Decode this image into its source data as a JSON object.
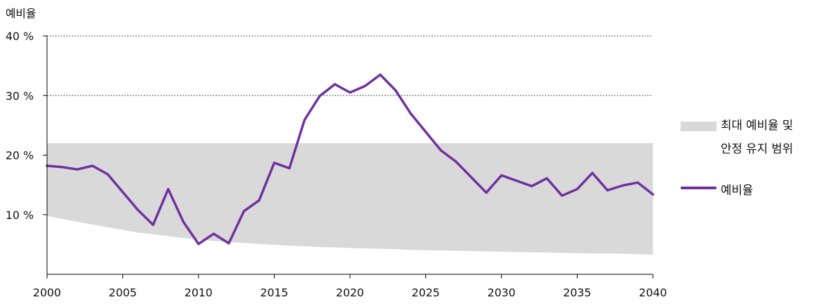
{
  "chart_data": {
    "type": "line",
    "title": "",
    "ylabel": "예비율",
    "xlabel": "",
    "xlim": [
      2000,
      2040
    ],
    "ylim": [
      0,
      40
    ],
    "x_ticks": [
      "2000",
      "2005",
      "2010",
      "2015",
      "2020",
      "2025",
      "2030",
      "2035",
      "2040"
    ],
    "y_ticks": [
      "10 %",
      "20 %",
      "30 %",
      "40 %"
    ],
    "gridlines_at": [
      30,
      40
    ],
    "band": {
      "name": "최대 예비율 및\n안정 유지 범위",
      "color": "#d9d9d9",
      "upper": 22,
      "x": [
        2000,
        2002,
        2004,
        2006,
        2008,
        2010,
        2012,
        2014,
        2016,
        2018,
        2020,
        2022,
        2024,
        2026,
        2028,
        2030,
        2032,
        2034,
        2036,
        2038,
        2040
      ],
      "lower": [
        9.8,
        8.8,
        7.9,
        7.0,
        6.4,
        5.8,
        5.4,
        5.1,
        4.8,
        4.6,
        4.4,
        4.3,
        4.1,
        4.0,
        3.9,
        3.8,
        3.7,
        3.6,
        3.5,
        3.45,
        3.3
      ]
    },
    "series": [
      {
        "name": "예비율",
        "color": "#7030a0",
        "x": [
          2000,
          2001,
          2002,
          2003,
          2004,
          2005,
          2006,
          2007,
          2008,
          2009,
          2010,
          2011,
          2012,
          2013,
          2014,
          2015,
          2016,
          2017,
          2018,
          2019,
          2020,
          2021,
          2022,
          2023,
          2024,
          2025,
          2026,
          2027,
          2028,
          2029,
          2030,
          2031,
          2032,
          2033,
          2034,
          2035,
          2036,
          2037,
          2038,
          2039,
          2040
        ],
        "values": [
          18.2,
          18.0,
          17.6,
          18.2,
          16.8,
          13.8,
          10.8,
          8.3,
          14.3,
          8.8,
          5.1,
          6.8,
          5.2,
          10.6,
          12.4,
          18.7,
          17.8,
          25.9,
          29.9,
          31.9,
          30.5,
          31.6,
          33.5,
          30.9,
          27.0,
          23.9,
          20.8,
          18.9,
          16.3,
          13.7,
          16.6,
          15.7,
          14.8,
          16.1,
          13.2,
          14.3,
          17.0,
          14.1,
          14.9,
          15.4,
          13.4
        ]
      }
    ],
    "legend_position": "right"
  }
}
